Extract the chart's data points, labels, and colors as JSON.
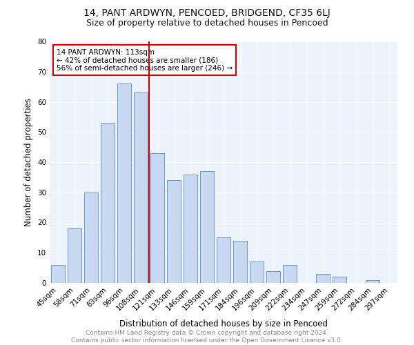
{
  "title": "14, PANT ARDWYN, PENCOED, BRIDGEND, CF35 6LJ",
  "subtitle": "Size of property relative to detached houses in Pencoed",
  "xlabel": "Distribution of detached houses by size in Pencoed",
  "ylabel": "Number of detached properties",
  "categories": [
    "45sqm",
    "58sqm",
    "71sqm",
    "83sqm",
    "96sqm",
    "108sqm",
    "121sqm",
    "133sqm",
    "146sqm",
    "159sqm",
    "171sqm",
    "184sqm",
    "196sqm",
    "209sqm",
    "222sqm",
    "234sqm",
    "247sqm",
    "259sqm",
    "272sqm",
    "284sqm",
    "297sqm"
  ],
  "values": [
    6,
    18,
    30,
    53,
    66,
    63,
    43,
    34,
    36,
    37,
    15,
    14,
    7,
    4,
    6,
    0,
    3,
    2,
    0,
    1,
    0
  ],
  "bar_color": "#c8d8f0",
  "bar_edge_color": "#6699cc",
  "vline_x": 5.5,
  "vline_color": "#cc0000",
  "annotation_text": "14 PANT ARDWYN: 113sqm\n← 42% of detached houses are smaller (186)\n56% of semi-detached houses are larger (246) →",
  "annotation_box_color": "#ffffff",
  "annotation_box_edge": "#cc0000",
  "ylim": [
    0,
    80
  ],
  "yticks": [
    0,
    10,
    20,
    30,
    40,
    50,
    60,
    70,
    80
  ],
  "footnote": "Contains HM Land Registry data © Crown copyright and database right 2024.\nContains public sector information licensed under the Open Government Licence v3.0.",
  "bg_color": "#ffffff",
  "plot_bg_color": "#eef2fa",
  "grid_color": "#ffffff",
  "title_fontsize": 10,
  "subtitle_fontsize": 9,
  "axis_label_fontsize": 8.5,
  "tick_fontsize": 7.5,
  "annotation_fontsize": 7.5,
  "footnote_fontsize": 6.5
}
